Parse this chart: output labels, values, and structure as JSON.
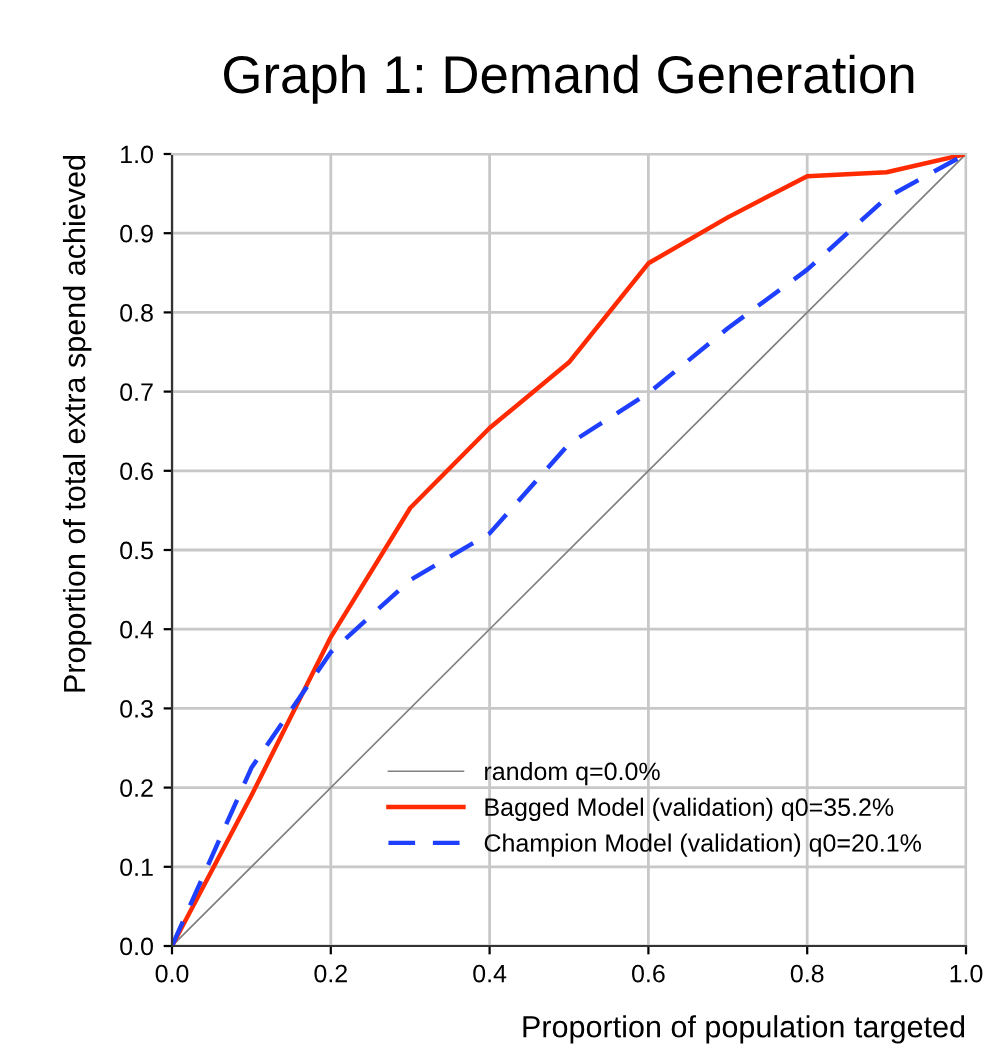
{
  "chart_data": {
    "type": "line",
    "title": "Graph 1: Demand Generation",
    "xlabel": "Proportion of population targeted",
    "ylabel": "Proportion of total extra spend achieved",
    "xlim": [
      0,
      1
    ],
    "ylim": [
      0,
      1
    ],
    "xticks": [
      {
        "value": 0,
        "label": "0.0"
      },
      0.2,
      0.4,
      0.6,
      0.8,
      {
        "value": 1,
        "label": "1.0"
      }
    ],
    "yticks": [
      {
        "value": 0,
        "label": "0.0"
      },
      0.1,
      0.2,
      0.3,
      0.4,
      0.5,
      0.6,
      0.7,
      0.8,
      0.9,
      {
        "value": 1,
        "label": "1.0"
      }
    ],
    "grid": true,
    "legend": "bottom right",
    "series": [
      {
        "name": "random q=0.0%",
        "color": "#808080",
        "line_style": "solid",
        "x": [
          0,
          1
        ],
        "values": [
          0,
          1
        ]
      },
      {
        "name": "Bagged Model (validation) q0=35.2%",
        "color": "#ff2a00",
        "line_style": "solid",
        "x": [
          0,
          0.1,
          0.2,
          0.3,
          0.4,
          0.5,
          0.6,
          0.7,
          0.8,
          0.9,
          1
        ],
        "values": [
          0,
          0.19,
          0.39,
          0.553,
          0.654,
          0.737,
          0.862,
          0.92,
          0.972,
          0.977,
          1
        ]
      },
      {
        "name": "Champion Model (validation) q0=20.1%",
        "color": "#1f3fff",
        "line_style": "dashed",
        "x": [
          0,
          0.1,
          0.2,
          0.3,
          0.4,
          0.5,
          0.6,
          0.7,
          0.8,
          0.9,
          1
        ],
        "values": [
          0,
          0.225,
          0.371,
          0.462,
          0.521,
          0.634,
          0.698,
          0.78,
          0.854,
          0.945,
          1
        ]
      }
    ]
  }
}
